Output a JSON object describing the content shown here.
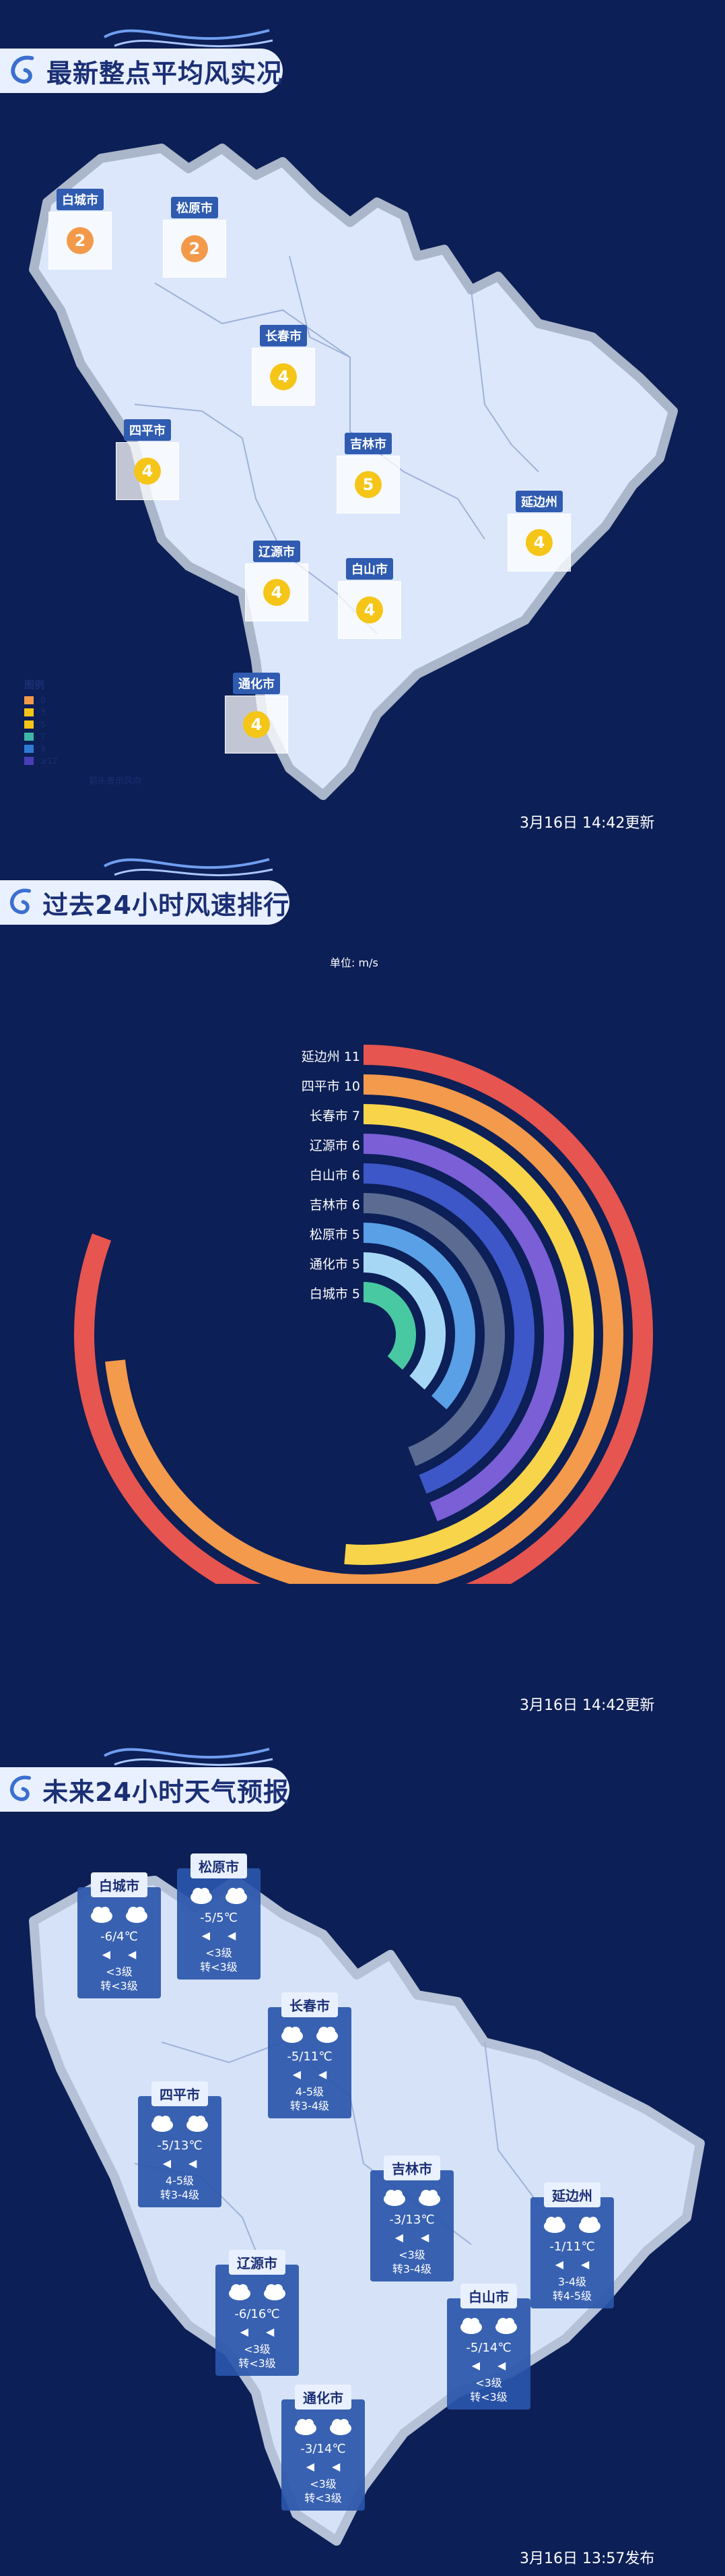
{
  "section1": {
    "title": "最新整点平均风实况",
    "update": "3月16日  14:42更新",
    "cities": [
      {
        "name": "白城市",
        "value": "2",
        "color": "#f29a4a"
      },
      {
        "name": "松原市",
        "value": "2",
        "color": "#f29a4a"
      },
      {
        "name": "长春市",
        "value": "4",
        "color": "#f5c518"
      },
      {
        "name": "四平市",
        "value": "4",
        "color": "#f5c518"
      },
      {
        "name": "吉林市",
        "value": "5",
        "color": "#f5c518"
      },
      {
        "name": "延边州",
        "value": "4",
        "color": "#f5c518"
      },
      {
        "name": "辽源市",
        "value": "4",
        "color": "#f5c518"
      },
      {
        "name": "白山市",
        "value": "4",
        "color": "#f5c518"
      },
      {
        "name": "通化市",
        "value": "4",
        "color": "#f5c518"
      }
    ],
    "legend": {
      "title": "图例",
      "items": [
        {
          "label": "0",
          "color": "#f29a4a"
        },
        {
          "label": "3",
          "color": "#f5c518"
        },
        {
          "label": "5",
          "color": "#f5c518"
        },
        {
          "label": "7",
          "color": "#3fb6a8"
        },
        {
          "label": "9",
          "color": "#2e7bd6"
        },
        {
          "label": "≥12",
          "color": "#4b3fb8"
        }
      ],
      "note": "箭头表示风向"
    }
  },
  "section2": {
    "title": "过去24小时风速排行",
    "unit": "单位: m/s",
    "update": "3月16日  14:42更新",
    "chart_data": {
      "type": "bar",
      "categories": [
        "延边州",
        "四平市",
        "长春市",
        "辽源市",
        "白山市",
        "吉林市",
        "松原市",
        "通化市",
        "白城市"
      ],
      "values": [
        11,
        10,
        7,
        6,
        6,
        6,
        5,
        5,
        5
      ],
      "colors": [
        "#e6554f",
        "#f39a4c",
        "#f7d44a",
        "#7a5fd6",
        "#3d57c8",
        "#5b6b92",
        "#5aa0e6",
        "#a6d8f5",
        "#49c9a2"
      ],
      "xlim": [
        0,
        12
      ]
    }
  },
  "section3": {
    "title": "未来24小时天气预报",
    "update": "3月16日  13:57发布",
    "cards": [
      {
        "city": "白城市",
        "temp": "-6/4℃",
        "wind": "<3级\n转<3级"
      },
      {
        "city": "松原市",
        "temp": "-5/5℃",
        "wind": "<3级\n转<3级"
      },
      {
        "city": "长春市",
        "temp": "-5/11℃",
        "wind": "4-5级\n转3-4级"
      },
      {
        "city": "四平市",
        "temp": "-5/13℃",
        "wind": "4-5级\n转3-4级"
      },
      {
        "city": "吉林市",
        "temp": "-3/13℃",
        "wind": "<3级\n转3-4级"
      },
      {
        "city": "延边州",
        "temp": "-1/11℃",
        "wind": "3-4级\n转4-5级"
      },
      {
        "city": "辽源市",
        "temp": "-6/16℃",
        "wind": "<3级\n转<3级"
      },
      {
        "city": "白山市",
        "temp": "-5/14℃",
        "wind": "<3级\n转<3级"
      },
      {
        "city": "通化市",
        "temp": "-3/14℃",
        "wind": "<3级\n转<3级"
      }
    ]
  }
}
